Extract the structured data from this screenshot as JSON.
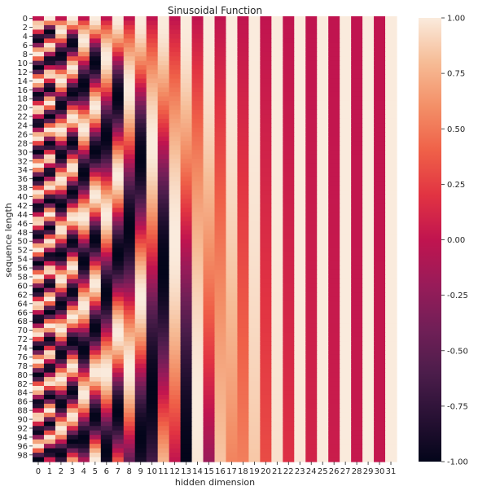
{
  "chart_data": {
    "type": "heatmap",
    "title": "Sinusoidal Function",
    "xlabel": "hidden dimension",
    "ylabel": "sequence length",
    "rows": 100,
    "cols": 32,
    "x_tick_labels": [
      "0",
      "1",
      "2",
      "3",
      "4",
      "5",
      "6",
      "7",
      "8",
      "9",
      "10",
      "11",
      "12",
      "13",
      "14",
      "15",
      "16",
      "17",
      "18",
      "19",
      "20",
      "21",
      "22",
      "23",
      "24",
      "25",
      "26",
      "27",
      "28",
      "29",
      "30",
      "31"
    ],
    "y_tick_labels": [
      "0",
      "2",
      "4",
      "6",
      "8",
      "10",
      "12",
      "14",
      "16",
      "18",
      "20",
      "22",
      "24",
      "26",
      "28",
      "30",
      "32",
      "34",
      "36",
      "38",
      "40",
      "42",
      "44",
      "46",
      "48",
      "50",
      "52",
      "54",
      "56",
      "58",
      "60",
      "62",
      "64",
      "66",
      "68",
      "70",
      "72",
      "74",
      "76",
      "78",
      "80",
      "82",
      "84",
      "86",
      "88",
      "90",
      "92",
      "94",
      "96",
      "98"
    ],
    "colorbar": {
      "colormap": "rocket",
      "vmin": -1.0,
      "vmax": 1.0,
      "tick_labels": [
        "1.00",
        "0.75",
        "0.50",
        "0.25",
        "0.00",
        "-0.25",
        "-0.50",
        "-0.75",
        "-1.00"
      ],
      "tick_values": [
        1.0,
        0.75,
        0.5,
        0.25,
        0.0,
        -0.25,
        -0.5,
        -0.75,
        -1.0
      ]
    },
    "formula": "value(pos, i) = sin(pos / 10000^(2*floor(i/2)/32)) for even i, cos(pos / 10000^(2*floor(i/2)/32)) for odd i",
    "grid": false,
    "legend": "colorbar-right"
  }
}
